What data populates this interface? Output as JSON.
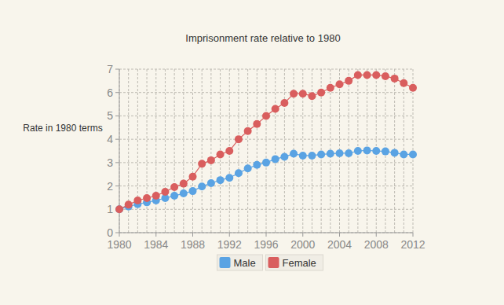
{
  "chart_data": {
    "type": "line",
    "title": "Imprisonment rate relative to 1980",
    "y_label": "Rate in 1980 terms",
    "x": [
      1980,
      1981,
      1982,
      1983,
      1984,
      1985,
      1986,
      1987,
      1988,
      1989,
      1990,
      1991,
      1992,
      1993,
      1994,
      1995,
      1996,
      1997,
      1998,
      1999,
      2000,
      2001,
      2002,
      2003,
      2004,
      2005,
      2006,
      2007,
      2008,
      2009,
      2010,
      2011,
      2012
    ],
    "series": [
      {
        "name": "Male",
        "color": "#5aa3e3",
        "values": [
          1.0,
          1.12,
          1.22,
          1.3,
          1.38,
          1.48,
          1.58,
          1.68,
          1.78,
          1.98,
          2.12,
          2.25,
          2.35,
          2.55,
          2.75,
          2.9,
          3.0,
          3.15,
          3.25,
          3.38,
          3.3,
          3.3,
          3.35,
          3.38,
          3.4,
          3.4,
          3.5,
          3.52,
          3.5,
          3.48,
          3.42,
          3.35,
          3.35
        ]
      },
      {
        "name": "Female",
        "color": "#d95e5e",
        "values": [
          1.0,
          1.2,
          1.38,
          1.48,
          1.58,
          1.75,
          1.95,
          2.1,
          2.4,
          2.95,
          3.1,
          3.35,
          3.5,
          4.0,
          4.35,
          4.65,
          5.0,
          5.3,
          5.55,
          5.95,
          5.95,
          5.85,
          6.0,
          6.2,
          6.35,
          6.5,
          6.75,
          6.75,
          6.75,
          6.7,
          6.6,
          6.4,
          6.2
        ]
      }
    ],
    "xlim": [
      1980,
      2012
    ],
    "xticks": [
      1980,
      1984,
      1988,
      1992,
      1996,
      2000,
      2004,
      2008,
      2012
    ],
    "ylim": [
      0,
      7
    ],
    "yticks": [
      0,
      1,
      2,
      3,
      4,
      5,
      6,
      7
    ],
    "grid": true,
    "legend": "bottom"
  }
}
